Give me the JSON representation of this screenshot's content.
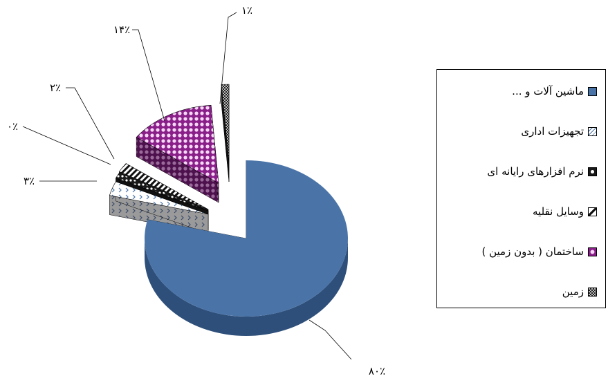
{
  "chart_data": {
    "type": "pie",
    "categories": [
      "ماشین آلات و ...",
      "تجهیزات اداری",
      "نرم افزارهای رایانه ای",
      "وسایل نقلیه",
      "ساختمان ( بدون زمین )",
      "زمین"
    ],
    "values": [
      80,
      3,
      0,
      2,
      14,
      1
    ],
    "data_labels": [
      "۸۰٪",
      "۳٪",
      "۰٪",
      "۲٪",
      "۱۴٪",
      "۱٪"
    ],
    "colors": [
      "#4a74a8",
      "#a9a9a9",
      "#444444",
      "#222222",
      "#9a2a9a",
      "#333333"
    ],
    "patterns": [
      "solid",
      "chevron",
      "checker-dots",
      "diagonal-stripes",
      "dots",
      "dense-checker"
    ],
    "legend_position": "right",
    "exploded": true,
    "three_d": true
  },
  "legend": {
    "items": [
      {
        "label": "ماشین آلات و ...",
        "icon": "solid-blue-swatch"
      },
      {
        "label": "تجهیزات اداری",
        "icon": "chevron-pattern-swatch"
      },
      {
        "label": "نرم افزارهای رایانه ای",
        "icon": "dotted-pattern-swatch"
      },
      {
        "label": "وسایل نقلیه",
        "icon": "diagonal-stripe-swatch"
      },
      {
        "label": "ساختمان ( بدون زمین )",
        "icon": "purple-dot-swatch"
      },
      {
        "label": "زمین",
        "icon": "checker-swatch"
      }
    ]
  }
}
